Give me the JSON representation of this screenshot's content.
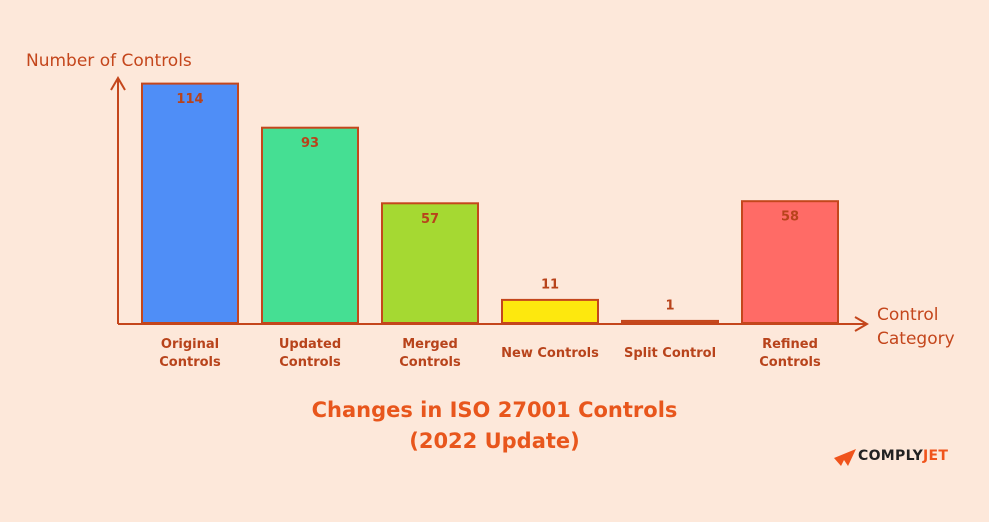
{
  "chart_data": {
    "type": "bar",
    "title": "Changes in ISO 27001 Controls",
    "subtitle": "(2022 Update)",
    "y_label": "Number of Controls",
    "x_label": "Control Category",
    "categories": [
      "Original Controls",
      "Updated Controls",
      "Merged Controls",
      "New Controls",
      "Split Control",
      "Refined Controls"
    ],
    "values": [
      114,
      93,
      57,
      11,
      1,
      58
    ],
    "colors": [
      "#4f8ef7",
      "#45df93",
      "#a5d932",
      "#fde80e",
      "#e0703a",
      "#ff6b66"
    ],
    "ylim": [
      0,
      120
    ]
  },
  "logo": {
    "first": "COMPLY",
    "second": "JET"
  }
}
